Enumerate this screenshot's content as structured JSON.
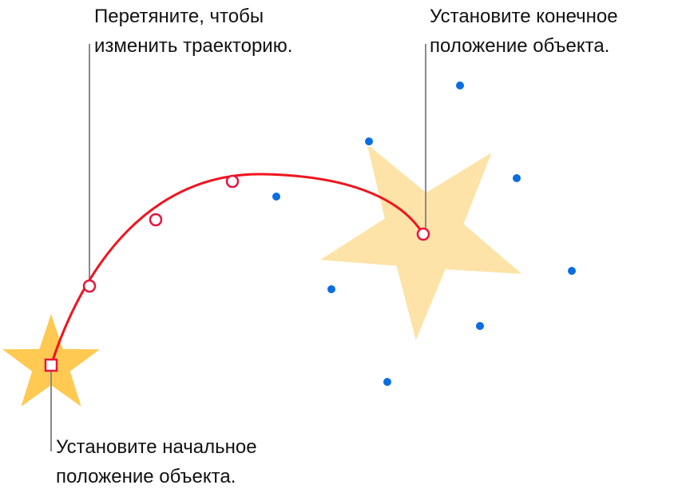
{
  "callouts": [
    {
      "lines": [
        "Перетяните, чтобы",
        "изменить траекторию."
      ]
    },
    {
      "lines": [
        "Установите конечное",
        "положение объекта."
      ]
    },
    {
      "lines": [
        "Установите начальное",
        "положение объекта."
      ]
    }
  ]
}
